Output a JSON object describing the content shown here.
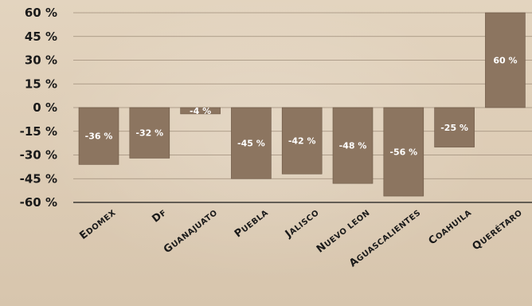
{
  "chart_data": {
    "type": "bar",
    "categories": [
      "Edomex",
      "DF",
      "Guanajuato",
      "Puebla",
      "Jalisco",
      "Nuevo Leon",
      "Aguascalientes",
      "Coahuila",
      "Querétaro"
    ],
    "values": [
      -36,
      -32,
      -4,
      -45,
      -42,
      -48,
      -56,
      -25,
      60
    ],
    "data_labels": [
      "-36 %",
      "-32 %",
      "-4 %",
      "-45 %",
      "-42 %",
      "-48 %",
      "-56 %",
      "-25 %",
      "60 %"
    ],
    "ylim": [
      -60,
      60
    ],
    "yticks": [
      60,
      45,
      30,
      15,
      0,
      -15,
      -30,
      -45,
      -60
    ],
    "ytick_labels": [
      "60 %",
      "45 %",
      "30 %",
      "15 %",
      "0 %",
      "-15 %",
      "-30 %",
      "-45 %",
      "-60 %"
    ],
    "grid": true,
    "title": "",
    "xlabel": "",
    "ylabel": "",
    "bar_color": "#8c7560",
    "bar_edge_color": "#6b5644",
    "grid_color": "#9e8d7a",
    "axis_color": "#1a1a1a",
    "label_color": "#ffffff"
  }
}
